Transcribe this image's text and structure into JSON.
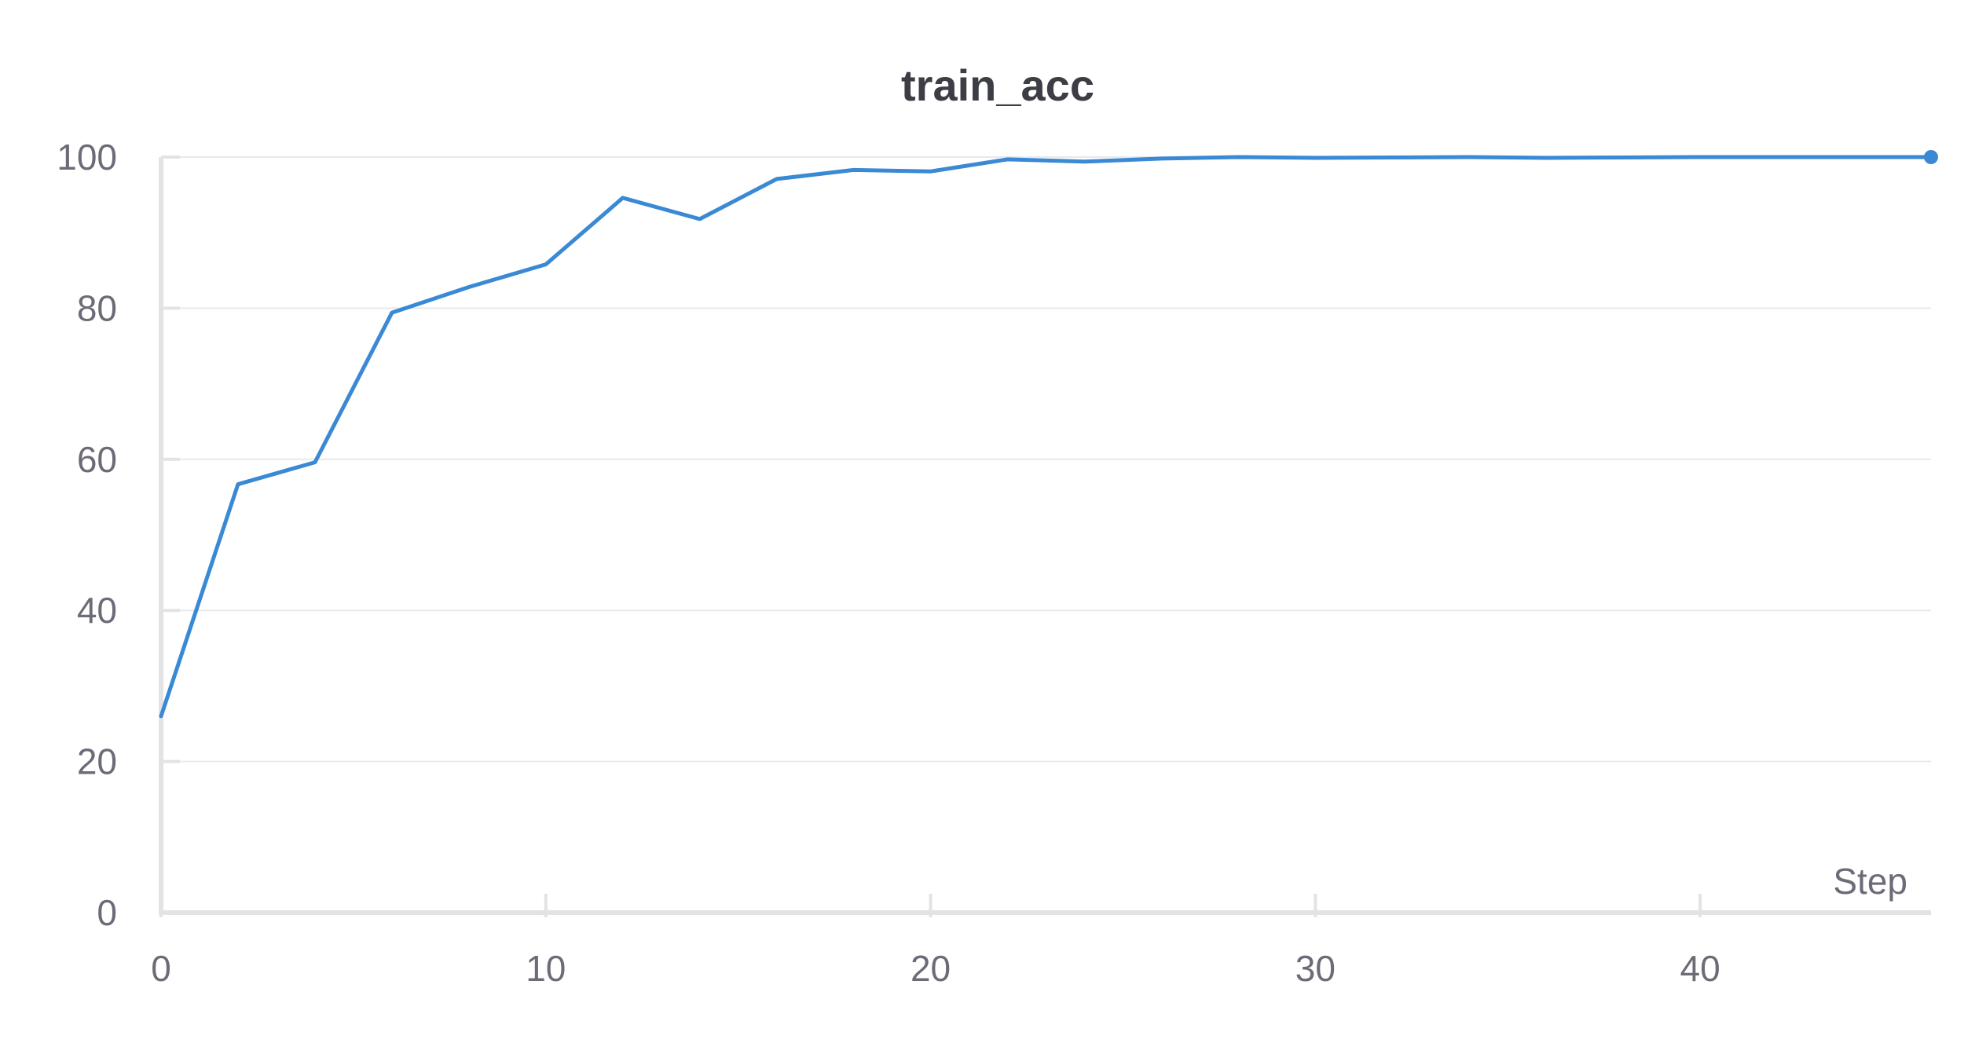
{
  "chart_data": {
    "type": "line",
    "title": "train_acc",
    "xlabel": "Step",
    "ylabel": "",
    "xlim": [
      0,
      46
    ],
    "ylim": [
      0,
      100
    ],
    "x_ticks": [
      0,
      10,
      20,
      30,
      40
    ],
    "y_ticks": [
      0,
      20,
      40,
      60,
      80,
      100
    ],
    "grid": true,
    "legend": "none",
    "series": [
      {
        "color": "#3a89d4",
        "x": [
          0,
          2,
          4,
          6,
          8,
          10,
          12,
          14,
          16,
          18,
          20,
          22,
          24,
          26,
          28,
          30,
          32,
          34,
          36,
          38,
          40,
          42,
          44,
          46
        ],
        "values": [
          26,
          56.7,
          59.6,
          79.4,
          82.8,
          85.8,
          94.6,
          91.8,
          97.1,
          98.3,
          98.1,
          99.7,
          99.4,
          99.8,
          100,
          99.9,
          99.95,
          100,
          99.9,
          99.95,
          100,
          100,
          100,
          100
        ]
      }
    ]
  }
}
